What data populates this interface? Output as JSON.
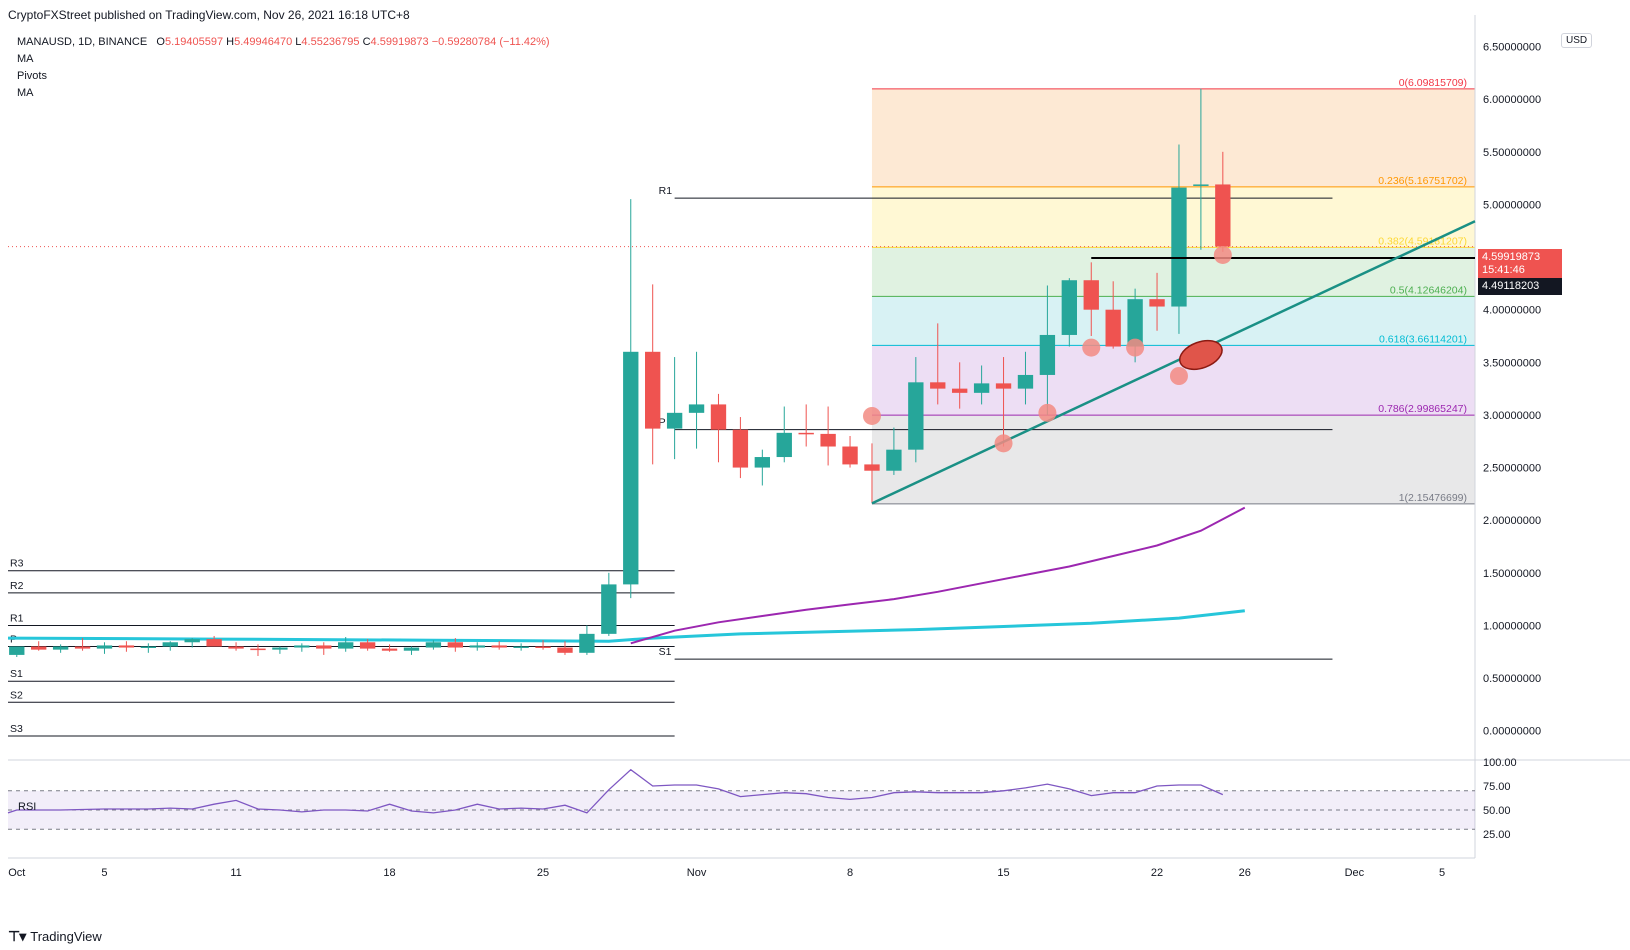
{
  "header": {
    "published": "CryptoFXStreet published on TradingView.com, Nov 26, 2021 16:18 UTC+8"
  },
  "legend": {
    "symbol": "MANAUSD, 1D, BINANCE",
    "o_label": "O",
    "o_value": "5.19405597",
    "h_label": "H",
    "h_value": "5.49946470",
    "l_label": "L",
    "l_value": "4.55236795",
    "c_label": "C",
    "c_value": "4.59919873",
    "change": "−0.59280784 (−11.42%)",
    "indicators": [
      "MA",
      "Pivots",
      "MA"
    ]
  },
  "currency": "USD",
  "brand": "TradingView",
  "rsi_label": "RSI",
  "last_price": {
    "value": "4.59919873",
    "countdown": "15:41:46"
  },
  "line_price": "4.49118203",
  "colors": {
    "up": "#26a69a",
    "down": "#ef5350",
    "ma_fast": "#9c27b0",
    "ma_slow": "#26c6da",
    "trend": "#1a9085",
    "rsi": "#7e57c2",
    "marker": "#f28b82"
  },
  "chart_data": {
    "type": "candlestick",
    "title": "",
    "y_axis": {
      "ticks": [
        "6.50000000",
        "6.00000000",
        "5.50000000",
        "5.00000000",
        "4.50000000",
        "4.00000000",
        "3.50000000",
        "3.00000000",
        "2.50000000",
        "2.00000000",
        "1.50000000",
        "1.00000000",
        "0.50000000",
        "0.00000000"
      ],
      "range": [
        -0.25,
        6.8
      ]
    },
    "x_axis": {
      "labels": [
        {
          "label": "Oct",
          "day": 1
        },
        {
          "label": "5",
          "day": 5
        },
        {
          "label": "11",
          "day": 11
        },
        {
          "label": "18",
          "day": 18
        },
        {
          "label": "25",
          "day": 25
        },
        {
          "label": "Nov",
          "day": 32
        },
        {
          "label": "8",
          "day": 39
        },
        {
          "label": "15",
          "day": 46
        },
        {
          "label": "22",
          "day": 53
        },
        {
          "label": "26",
          "day": 57
        },
        {
          "label": "Dec",
          "day": 62
        },
        {
          "label": "5",
          "day": 66
        }
      ],
      "day_range": [
        0.6,
        67.5
      ]
    },
    "candles": [
      {
        "day": 1,
        "o": 0.72,
        "h": 0.8,
        "l": 0.7,
        "c": 0.8
      },
      {
        "day": 2,
        "o": 0.8,
        "h": 0.85,
        "l": 0.76,
        "c": 0.77
      },
      {
        "day": 3,
        "o": 0.77,
        "h": 0.82,
        "l": 0.74,
        "c": 0.8
      },
      {
        "day": 4,
        "o": 0.8,
        "h": 0.88,
        "l": 0.76,
        "c": 0.78
      },
      {
        "day": 5,
        "o": 0.78,
        "h": 0.84,
        "l": 0.73,
        "c": 0.81
      },
      {
        "day": 6,
        "o": 0.81,
        "h": 0.85,
        "l": 0.75,
        "c": 0.79
      },
      {
        "day": 7,
        "o": 0.79,
        "h": 0.83,
        "l": 0.74,
        "c": 0.8
      },
      {
        "day": 8,
        "o": 0.8,
        "h": 0.85,
        "l": 0.76,
        "c": 0.84
      },
      {
        "day": 9,
        "o": 0.84,
        "h": 0.88,
        "l": 0.79,
        "c": 0.87
      },
      {
        "day": 10,
        "o": 0.87,
        "h": 0.9,
        "l": 0.82,
        "c": 0.8
      },
      {
        "day": 11,
        "o": 0.8,
        "h": 0.84,
        "l": 0.76,
        "c": 0.78
      },
      {
        "day": 12,
        "o": 0.78,
        "h": 0.82,
        "l": 0.71,
        "c": 0.77
      },
      {
        "day": 13,
        "o": 0.77,
        "h": 0.8,
        "l": 0.73,
        "c": 0.79
      },
      {
        "day": 14,
        "o": 0.79,
        "h": 0.83,
        "l": 0.75,
        "c": 0.81
      },
      {
        "day": 15,
        "o": 0.81,
        "h": 0.84,
        "l": 0.72,
        "c": 0.78
      },
      {
        "day": 16,
        "o": 0.78,
        "h": 0.89,
        "l": 0.75,
        "c": 0.84
      },
      {
        "day": 17,
        "o": 0.84,
        "h": 0.87,
        "l": 0.76,
        "c": 0.78
      },
      {
        "day": 18,
        "o": 0.78,
        "h": 0.82,
        "l": 0.75,
        "c": 0.76
      },
      {
        "day": 19,
        "o": 0.76,
        "h": 0.8,
        "l": 0.72,
        "c": 0.79
      },
      {
        "day": 20,
        "o": 0.79,
        "h": 0.86,
        "l": 0.77,
        "c": 0.84
      },
      {
        "day": 21,
        "o": 0.84,
        "h": 0.88,
        "l": 0.75,
        "c": 0.79
      },
      {
        "day": 22,
        "o": 0.79,
        "h": 0.84,
        "l": 0.76,
        "c": 0.81
      },
      {
        "day": 23,
        "o": 0.81,
        "h": 0.85,
        "l": 0.77,
        "c": 0.79
      },
      {
        "day": 24,
        "o": 0.79,
        "h": 0.83,
        "l": 0.76,
        "c": 0.8
      },
      {
        "day": 25,
        "o": 0.8,
        "h": 0.86,
        "l": 0.77,
        "c": 0.79
      },
      {
        "day": 26,
        "o": 0.79,
        "h": 0.85,
        "l": 0.72,
        "c": 0.74
      },
      {
        "day": 27,
        "o": 0.74,
        "h": 1.0,
        "l": 0.72,
        "c": 0.92
      },
      {
        "day": 28,
        "o": 0.92,
        "h": 1.5,
        "l": 0.9,
        "c": 1.39
      },
      {
        "day": 29,
        "o": 1.39,
        "h": 5.05,
        "l": 1.26,
        "c": 3.6
      },
      {
        "day": 30,
        "o": 3.6,
        "h": 4.24,
        "l": 2.53,
        "c": 2.87
      },
      {
        "day": 31,
        "o": 2.87,
        "h": 3.55,
        "l": 2.58,
        "c": 3.02
      },
      {
        "day": 32,
        "o": 3.02,
        "h": 3.6,
        "l": 2.68,
        "c": 3.1
      },
      {
        "day": 33,
        "o": 3.1,
        "h": 3.2,
        "l": 2.55,
        "c": 2.86
      },
      {
        "day": 34,
        "o": 2.86,
        "h": 2.98,
        "l": 2.4,
        "c": 2.5
      },
      {
        "day": 35,
        "o": 2.5,
        "h": 2.67,
        "l": 2.33,
        "c": 2.6
      },
      {
        "day": 36,
        "o": 2.6,
        "h": 3.08,
        "l": 2.55,
        "c": 2.83
      },
      {
        "day": 37,
        "o": 2.83,
        "h": 3.1,
        "l": 2.7,
        "c": 2.82
      },
      {
        "day": 38,
        "o": 2.82,
        "h": 3.08,
        "l": 2.52,
        "c": 2.7
      },
      {
        "day": 39,
        "o": 2.7,
        "h": 2.8,
        "l": 2.5,
        "c": 2.53
      },
      {
        "day": 40,
        "o": 2.53,
        "h": 2.73,
        "l": 2.16,
        "c": 2.47
      },
      {
        "day": 41,
        "o": 2.47,
        "h": 2.88,
        "l": 2.43,
        "c": 2.67
      },
      {
        "day": 42,
        "o": 2.67,
        "h": 3.55,
        "l": 2.55,
        "c": 3.31
      },
      {
        "day": 43,
        "o": 3.31,
        "h": 3.87,
        "l": 3.1,
        "c": 3.25
      },
      {
        "day": 44,
        "o": 3.25,
        "h": 3.5,
        "l": 3.06,
        "c": 3.21
      },
      {
        "day": 45,
        "o": 3.21,
        "h": 3.47,
        "l": 3.1,
        "c": 3.3
      },
      {
        "day": 46,
        "o": 3.3,
        "h": 3.55,
        "l": 2.7,
        "c": 3.25
      },
      {
        "day": 47,
        "o": 3.25,
        "h": 3.6,
        "l": 3.1,
        "c": 3.38
      },
      {
        "day": 48,
        "o": 3.38,
        "h": 4.23,
        "l": 3.0,
        "c": 3.76
      },
      {
        "day": 49,
        "o": 3.76,
        "h": 4.3,
        "l": 3.65,
        "c": 4.28
      },
      {
        "day": 50,
        "o": 4.28,
        "h": 4.45,
        "l": 3.75,
        "c": 4.0
      },
      {
        "day": 51,
        "o": 4.0,
        "h": 4.27,
        "l": 3.63,
        "c": 3.65
      },
      {
        "day": 52,
        "o": 3.65,
        "h": 4.2,
        "l": 3.5,
        "c": 4.1
      },
      {
        "day": 53,
        "o": 4.1,
        "h": 4.35,
        "l": 3.8,
        "c": 4.03
      },
      {
        "day": 54,
        "o": 4.03,
        "h": 5.57,
        "l": 3.77,
        "c": 5.16
      },
      {
        "day": 55,
        "o": 5.18,
        "h": 6.1,
        "l": 4.57,
        "c": 5.19
      },
      {
        "day": 56,
        "o": 5.19,
        "h": 5.5,
        "l": 4.55,
        "c": 4.6
      }
    ],
    "ma_fast": [
      [
        29,
        0.83
      ],
      [
        31,
        0.95
      ],
      [
        33,
        1.03
      ],
      [
        35,
        1.09
      ],
      [
        37,
        1.15
      ],
      [
        39,
        1.2
      ],
      [
        41,
        1.25
      ],
      [
        43,
        1.32
      ],
      [
        45,
        1.4
      ],
      [
        47,
        1.48
      ],
      [
        49,
        1.56
      ],
      [
        51,
        1.66
      ],
      [
        53,
        1.76
      ],
      [
        55,
        1.9
      ],
      [
        57,
        2.12
      ]
    ],
    "ma_slow": [
      [
        0.6,
        0.88
      ],
      [
        10,
        0.87
      ],
      [
        20,
        0.86
      ],
      [
        28,
        0.85
      ],
      [
        30,
        0.88
      ],
      [
        34,
        0.92
      ],
      [
        38,
        0.94
      ],
      [
        42,
        0.96
      ],
      [
        46,
        0.99
      ],
      [
        50,
        1.02
      ],
      [
        54,
        1.07
      ],
      [
        57,
        1.14
      ]
    ],
    "trend_line": {
      "from": [
        40,
        2.16
      ],
      "to": [
        67.5,
        4.84
      ]
    },
    "pivot_left": {
      "from_day": 0.6,
      "to_day": 31,
      "levels": [
        {
          "label": "R3",
          "value": 1.52
        },
        {
          "label": "R2",
          "value": 1.31
        },
        {
          "label": "R1",
          "value": 1.0
        },
        {
          "label": "P",
          "value": 0.8
        },
        {
          "label": "S1",
          "value": 0.47
        },
        {
          "label": "S2",
          "value": 0.27
        },
        {
          "label": "S3",
          "value": -0.05
        }
      ]
    },
    "pivot_right": {
      "from_day": 31,
      "to_day": 61,
      "levels": [
        {
          "label": "R1",
          "value": 5.06
        },
        {
          "label": "P",
          "value": 2.86
        },
        {
          "label": "S1",
          "value": 0.68
        }
      ]
    },
    "fibonacci": {
      "from_day": 40,
      "to_day": 67.5,
      "levels": [
        {
          "label": "0(6.09815709)",
          "value": 6.09815709,
          "color": "#f23645",
          "fill": "#fde5cc"
        },
        {
          "label": "0.236(5.16751702)",
          "value": 5.16751702,
          "color": "#ff9800",
          "fill": "#fff7cc"
        },
        {
          "label": "0.382(4.59181207)",
          "value": 4.59181207,
          "color": "#fdd835",
          "fill": "#dbf0dc"
        },
        {
          "label": "0.5(4.12646204)",
          "value": 4.12646204,
          "color": "#4caf50",
          "fill": "#d1f0f2"
        },
        {
          "label": "0.618(3.66114201)",
          "value": 3.66114201,
          "color": "#00bcd4",
          "fill": "#ead8f2"
        },
        {
          "label": "0.786(2.99865247)",
          "value": 2.99865247,
          "color": "#9c27b0",
          "fill": "#e4e4e5"
        },
        {
          "label": "1(2.15476699)",
          "value": 2.15476699,
          "color": "#787b86",
          "fill": null
        }
      ]
    },
    "support_line": {
      "from_day": 50,
      "to_day": 67.5,
      "value": 4.49118203
    },
    "highlight_markers": [
      [
        40,
        2.99
      ],
      [
        46,
        2.73
      ],
      [
        48,
        3.02
      ],
      [
        50,
        3.64
      ],
      [
        52,
        3.64
      ],
      [
        54,
        3.37
      ],
      [
        56,
        4.52
      ]
    ],
    "highlight_ellipse": {
      "day": 55,
      "value": 3.57
    },
    "rsi": {
      "ticks": [
        "100.00",
        "75.00",
        "50.00",
        "25.00"
      ],
      "band": [
        30,
        70
      ],
      "values": [
        [
          0.6,
          47
        ],
        [
          1,
          50
        ],
        [
          3,
          50
        ],
        [
          5,
          51
        ],
        [
          7,
          51
        ],
        [
          8,
          52
        ],
        [
          9,
          51
        ],
        [
          10,
          56
        ],
        [
          11,
          60
        ],
        [
          12,
          51
        ],
        [
          13,
          50
        ],
        [
          14,
          48
        ],
        [
          15,
          50
        ],
        [
          16,
          50
        ],
        [
          17,
          49
        ],
        [
          18,
          56
        ],
        [
          19,
          49
        ],
        [
          20,
          47
        ],
        [
          21,
          50
        ],
        [
          22,
          56
        ],
        [
          23,
          51
        ],
        [
          24,
          52
        ],
        [
          25,
          51
        ],
        [
          26,
          55
        ],
        [
          27,
          47
        ],
        [
          28,
          71
        ],
        [
          29,
          92
        ],
        [
          30,
          75
        ],
        [
          31,
          76
        ],
        [
          32,
          76
        ],
        [
          33,
          72
        ],
        [
          34,
          64
        ],
        [
          35,
          66
        ],
        [
          36,
          68
        ],
        [
          37,
          67
        ],
        [
          38,
          63
        ],
        [
          39,
          61
        ],
        [
          40,
          63
        ],
        [
          41,
          68
        ],
        [
          42,
          69
        ],
        [
          43,
          68
        ],
        [
          44,
          68
        ],
        [
          45,
          68
        ],
        [
          46,
          70
        ],
        [
          47,
          73
        ],
        [
          48,
          77
        ],
        [
          49,
          72
        ],
        [
          50,
          65
        ],
        [
          51,
          68
        ],
        [
          52,
          68
        ],
        [
          53,
          75
        ],
        [
          54,
          76
        ],
        [
          55,
          76
        ],
        [
          56,
          66
        ]
      ]
    }
  }
}
